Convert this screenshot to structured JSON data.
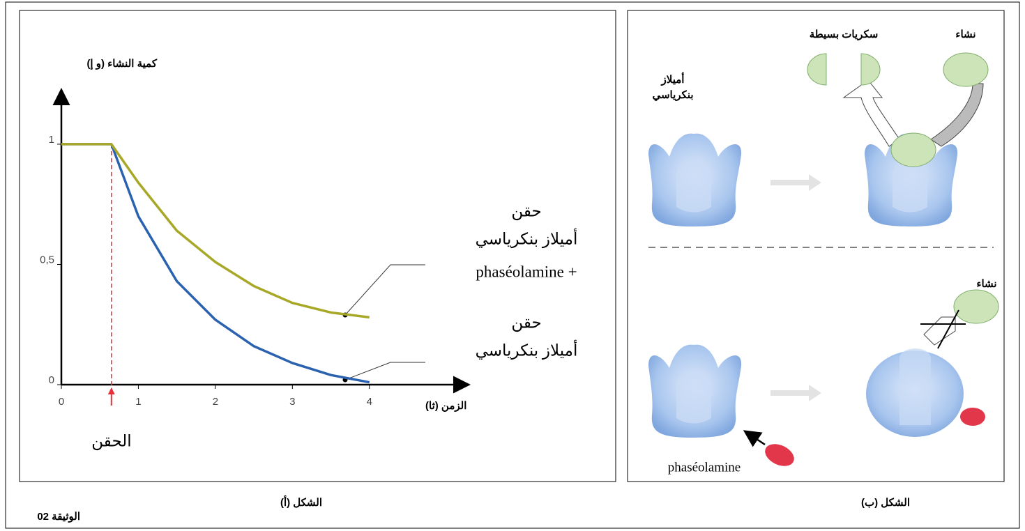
{
  "chart_data": {
    "type": "line",
    "y_label": "كمية النشاء (و إ)",
    "x_label": "الزمن (ثا)",
    "injection_label": "الحقن",
    "injection_x": 0.65,
    "x": [
      0,
      0.65,
      1,
      1.5,
      2,
      2.5,
      3,
      3.5,
      4
    ],
    "series": [
      {
        "color": "#a8a828",
        "values": [
          1,
          1,
          0.84,
          0.64,
          0.51,
          0.41,
          0.34,
          0.3,
          0.28
        ],
        "label": [
          "حقن",
          "أميلاز بنكرياسي",
          "phaséolamine +"
        ]
      },
      {
        "color": "#2a62b0",
        "values": [
          1,
          1,
          0.7,
          0.43,
          0.27,
          0.16,
          0.09,
          0.04,
          0.01
        ],
        "label": [
          "حقن",
          "أميلاز بنكرياسي"
        ]
      }
    ],
    "xlim": [
      0,
      5.27
    ],
    "ylim": [
      0,
      1.22
    ],
    "xticks": [
      0,
      1,
      2,
      3,
      4
    ],
    "yticks": [
      0,
      {
        "value": 0.5,
        "label": "0,5"
      },
      1
    ]
  },
  "figure_a_caption": "الشكل (أ)",
  "figure_b_caption": "الشكل (ب)",
  "document_label": "الوثيقة 02",
  "diagram": {
    "enzyme_label": [
      "أميلاز",
      "بنكرياسي"
    ],
    "simple_sugars": "سكريات بسيطة",
    "starch_top": "نشاء",
    "starch_bottom": "نشاء",
    "inhibitor": "phaséolamine"
  }
}
